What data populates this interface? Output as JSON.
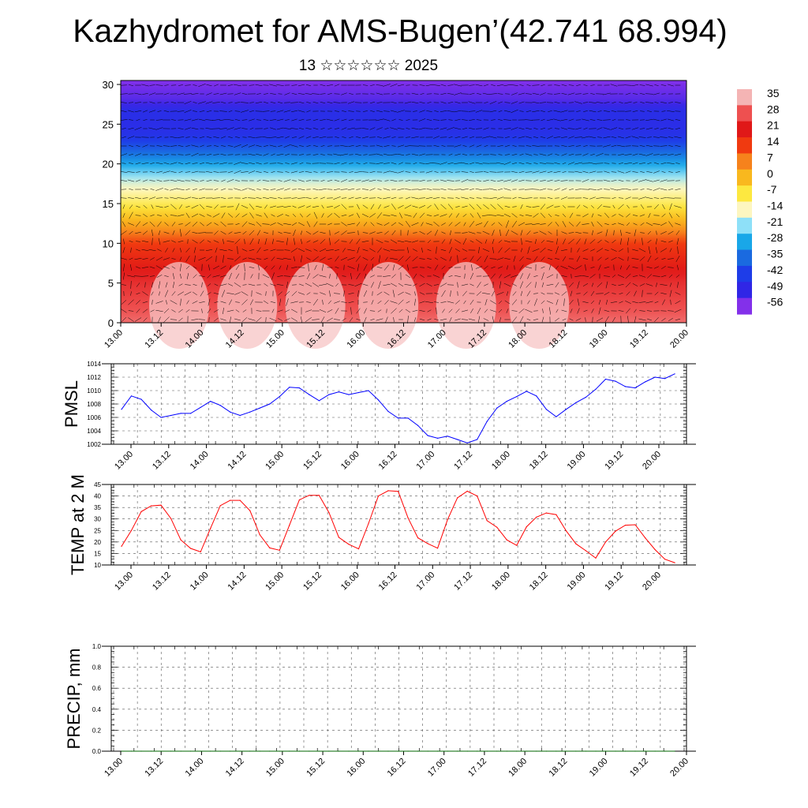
{
  "header": {
    "title": "Kazhydromet for AMS-Bugen’(42.741 68.994)",
    "subtitle": "13 ☆☆☆☆☆☆ 2025"
  },
  "chart_data": [
    {
      "type": "heatmap",
      "title": "",
      "description_of_overlay": "wind vectors",
      "x_tick_labels": [
        "13.00",
        "13.12",
        "14.00",
        "14.12",
        "15.00",
        "15.12",
        "16.00",
        "16.12",
        "17.00",
        "17.12",
        "18.00",
        "18.12",
        "19.00",
        "19.12",
        "20.00"
      ],
      "y_ticks": [
        0,
        5,
        10,
        15,
        20,
        25,
        30
      ],
      "ylim": [
        0,
        30.5
      ],
      "colorbar": {
        "labels": [
          "35",
          "28",
          "21",
          "14",
          "7",
          "0",
          "-7",
          "-14",
          "-21",
          "-28",
          "-35",
          "-42",
          "-49",
          "-56"
        ],
        "stops": [
          {
            "value": 35,
            "color": "#f4b4b4"
          },
          {
            "value": 28,
            "color": "#ee5050"
          },
          {
            "value": 21,
            "color": "#e01818"
          },
          {
            "value": 14,
            "color": "#f03a10"
          },
          {
            "value": 7,
            "color": "#f6821c"
          },
          {
            "value": 0,
            "color": "#f9b81e"
          },
          {
            "value": -7,
            "color": "#fde840"
          },
          {
            "value": -14,
            "color": "#fdf6c0"
          },
          {
            "value": -21,
            "color": "#8ee0f8"
          },
          {
            "value": -28,
            "color": "#19a7e8"
          },
          {
            "value": -35,
            "color": "#1a6ae0"
          },
          {
            "value": -42,
            "color": "#1e3de8"
          },
          {
            "value": -49,
            "color": "#3026e6"
          },
          {
            "value": -56,
            "color": "#8330ea"
          }
        ]
      },
      "temperature_by_height": [
        {
          "h": 0,
          "t": 30
        },
        {
          "h": 5,
          "t": 24
        },
        {
          "h": 10,
          "t": 14
        },
        {
          "h": 12,
          "t": 4
        },
        {
          "h": 14,
          "t": -4
        },
        {
          "h": 15.5,
          "t": -10
        },
        {
          "h": 17.5,
          "t": -16
        },
        {
          "h": 19.5,
          "t": -26
        },
        {
          "h": 21.5,
          "t": -35
        },
        {
          "h": 23.5,
          "t": -45
        },
        {
          "h": 25,
          "t": -47
        },
        {
          "h": 26.5,
          "t": -46
        },
        {
          "h": 28,
          "t": -52
        },
        {
          "h": 30.5,
          "t": -56
        }
      ]
    },
    {
      "type": "line",
      "ylabel": "PMSL",
      "ylim": [
        1002,
        1014
      ],
      "y_ticks": [
        1002,
        1004,
        1006,
        1008,
        1010,
        1012,
        1014
      ],
      "x_tick_labels": [
        "13.00",
        "13.12",
        "14.00",
        "14.12",
        "15.00",
        "15.12",
        "16.00",
        "16.12",
        "17.00",
        "17.12",
        "18.00",
        "18.12",
        "19.00",
        "19.12",
        "20.00"
      ],
      "x_start_hour": 0,
      "x_end_hour": 168,
      "x_step_hours": 3,
      "series": [
        {
          "color": "#0000ff",
          "values": [
            1007.2,
            1009.2,
            1008.7,
            1007.1,
            1006.0,
            1006.3,
            1006.6,
            1006.6,
            1007.5,
            1008.4,
            1007.8,
            1006.8,
            1006.3,
            1006.8,
            1007.4,
            1008.0,
            1009.1,
            1010.5,
            1010.4,
            1009.4,
            1008.5,
            1009.4,
            1009.8,
            1009.4,
            1009.7,
            1010.0,
            1008.6,
            1006.9,
            1005.9,
            1005.9,
            1004.8,
            1003.3,
            1002.9,
            1003.2,
            1002.7,
            1002.2,
            1002.7,
            1005.4,
            1007.4,
            1008.4,
            1009.1,
            1009.9,
            1009.2,
            1007.2,
            1006.1,
            1007.2,
            1008.2,
            1009.0,
            1010.2,
            1011.7,
            1011.4,
            1010.6,
            1010.4,
            1011.3,
            1012.0,
            1011.8,
            1012.5
          ]
        }
      ]
    },
    {
      "type": "line",
      "ylabel": "TEMP at 2 M",
      "ylim": [
        10,
        45
      ],
      "y_ticks": [
        10,
        15,
        20,
        25,
        30,
        35,
        40,
        45
      ],
      "x_tick_labels": [
        "13.00",
        "13.12",
        "14.00",
        "14.12",
        "15.00",
        "15.12",
        "16.00",
        "16.12",
        "17.00",
        "17.12",
        "18.00",
        "18.12",
        "19.00",
        "19.12",
        "20.00"
      ],
      "x_start_hour": 0,
      "x_end_hour": 168,
      "x_step_hours": 3,
      "series": [
        {
          "color": "#ff0000",
          "values": [
            18.1,
            25.0,
            33.2,
            35.7,
            36.0,
            30.2,
            20.9,
            17.2,
            15.7,
            25.9,
            35.8,
            38.1,
            38.1,
            33.6,
            23.1,
            17.4,
            16.4,
            27.3,
            38.3,
            40.3,
            40.3,
            32.8,
            22.0,
            19.0,
            17.0,
            28.0,
            40.0,
            42.3,
            42.0,
            30.5,
            21.8,
            19.3,
            17.3,
            29.7,
            39.2,
            42.1,
            40.0,
            29.3,
            26.4,
            20.9,
            18.5,
            26.6,
            30.8,
            32.6,
            31.9,
            24.9,
            19.2,
            16.2,
            13.0,
            20.0,
            24.7,
            27.3,
            27.5,
            21.8,
            16.7,
            12.5,
            11.0
          ]
        }
      ]
    },
    {
      "type": "line",
      "ylabel": "PRECIP, mm",
      "ylim": [
        0,
        1.0
      ],
      "y_ticks": [
        0.0,
        0.2,
        0.4,
        0.6,
        0.8,
        1.0
      ],
      "y_tick_labels": [
        "0.0",
        "0.2",
        "0.4",
        "0.6",
        "0.8",
        "1.0"
      ],
      "x_tick_labels": [
        "13.00",
        "13.12",
        "14.00",
        "14.12",
        "15.00",
        "15.12",
        "16.00",
        "16.12",
        "17.00",
        "17.12",
        "18.00",
        "18.12",
        "19.00",
        "19.12",
        "20.00"
      ],
      "x_start_hour": 0,
      "x_end_hour": 168,
      "x_step_hours": 3,
      "series": [
        {
          "color": "#006400",
          "values": [
            0,
            0,
            0,
            0,
            0,
            0,
            0,
            0,
            0,
            0,
            0,
            0,
            0,
            0,
            0,
            0,
            0,
            0,
            0,
            0,
            0,
            0,
            0,
            0,
            0,
            0,
            0,
            0,
            0,
            0,
            0,
            0,
            0,
            0,
            0,
            0,
            0,
            0,
            0,
            0,
            0,
            0,
            0,
            0,
            0,
            0,
            0,
            0,
            0,
            0,
            0,
            0,
            0,
            0,
            0,
            0,
            0
          ]
        }
      ]
    }
  ]
}
